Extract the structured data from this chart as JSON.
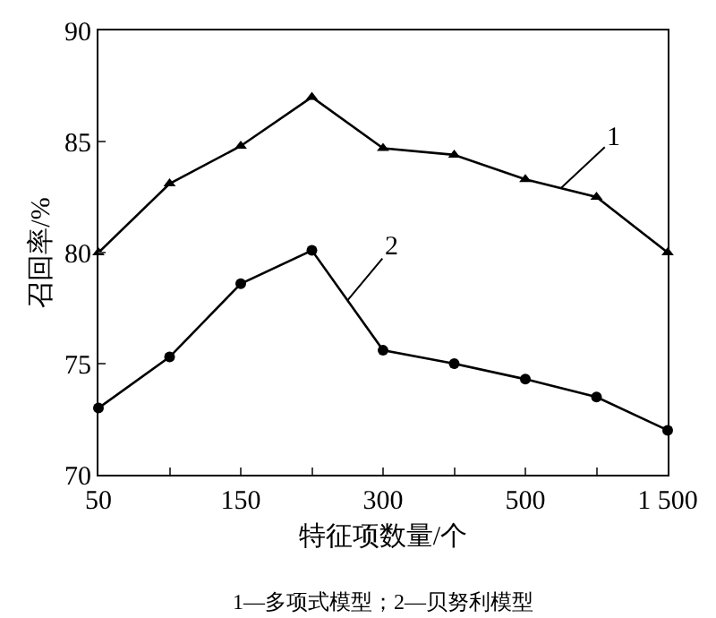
{
  "chart_data": {
    "type": "line",
    "xlabel": "特征项数量/个",
    "ylabel": "召回率/%",
    "categories": [
      "50",
      null,
      "150",
      null,
      "300",
      null,
      "500",
      null,
      "1 500"
    ],
    "series": [
      {
        "name": "1",
        "color": "#000000",
        "marker": "triangle",
        "values": [
          80,
          83.1,
          84.8,
          87,
          84.7,
          84.4,
          83.3,
          82.5,
          80
        ]
      },
      {
        "name": "2",
        "color": "#000000",
        "marker": "circle",
        "values": [
          73,
          75.3,
          78.6,
          80.1,
          75.6,
          75,
          74.3,
          73.5,
          72
        ]
      }
    ],
    "ylim": [
      70,
      90
    ],
    "yticks": [
      70,
      75,
      80,
      85,
      90
    ],
    "legend": false,
    "line_style": "solid",
    "annotations": [
      "1—多项式模型；2—贝努利模型"
    ]
  }
}
